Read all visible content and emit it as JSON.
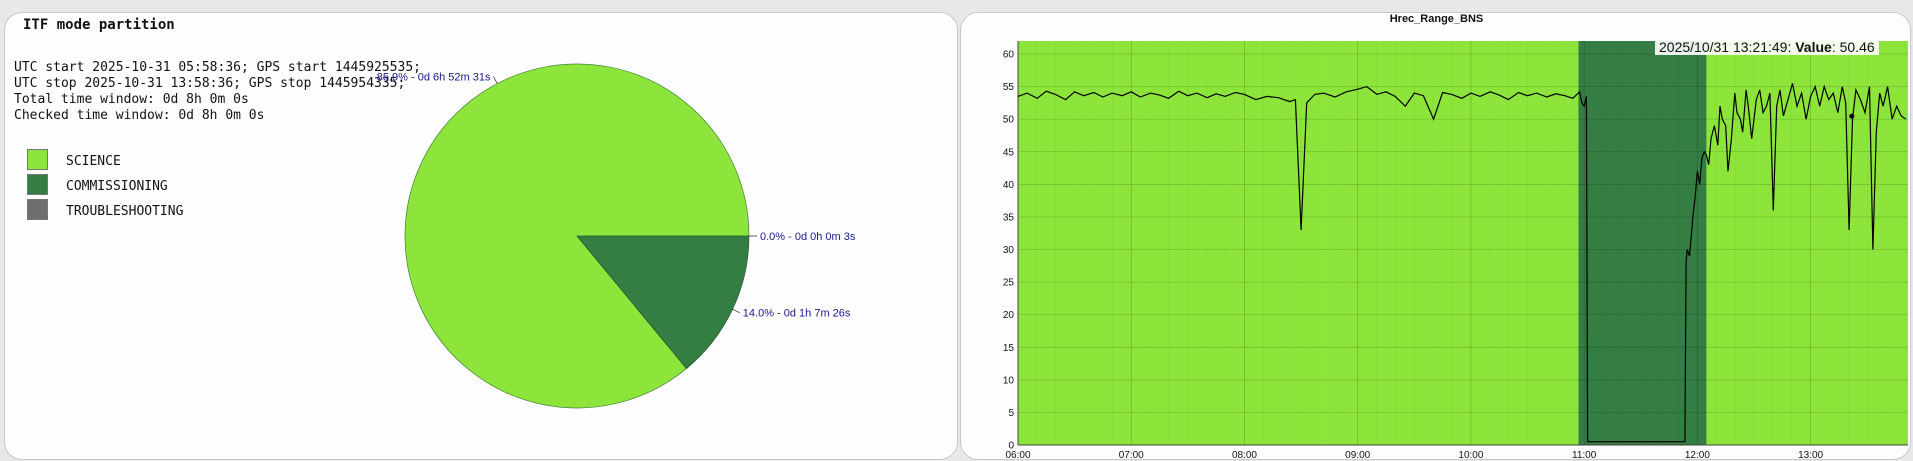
{
  "chart_data": [
    {
      "type": "pie",
      "title": "ITF mode partition",
      "info": [
        "UTC start 2025-10-31 05:58:36; GPS start 1445925535;",
        "UTC stop 2025-10-31 13:58:36; GPS stop 1445954335;",
        "Total time window: 0d 8h 0m 0s",
        "Checked time window: 0d 8h 0m 0s"
      ],
      "legend": [
        {
          "name": "SCIENCE",
          "color": "#8de53c"
        },
        {
          "name": "COMMISSIONING",
          "color": "#347d43"
        },
        {
          "name": "TROUBLESHOOTING",
          "color": "#6e6e6e"
        }
      ],
      "slices": [
        {
          "name": "SCIENCE",
          "value": 85.9,
          "label": "85.9% - 0d 6h 52m 31s",
          "color": "#8de53c"
        },
        {
          "name": "COMMISSIONING",
          "value": 14.0,
          "label": "14.0% - 0d 1h 7m 26s",
          "color": "#347d43"
        },
        {
          "name": "TROUBLESHOOTING",
          "value": 0.0,
          "label": "0.0% - 0d 0h 0m 3s",
          "color": "#6e6e6e"
        }
      ]
    },
    {
      "type": "line",
      "title": "Hrec_Range_BNS",
      "xlabel": "",
      "ylabel": "",
      "ylim": [
        0,
        62
      ],
      "y_ticks": [
        0,
        5,
        10,
        15,
        20,
        25,
        30,
        35,
        40,
        45,
        50,
        55,
        60
      ],
      "x_tick_labels": [
        "06:00",
        "07:00",
        "08:00",
        "09:00",
        "10:00",
        "11:00",
        "12:00",
        "13:00"
      ],
      "x_ticks_hours": [
        6,
        7,
        8,
        9,
        10,
        11,
        12,
        13
      ],
      "xlim_hours": [
        6.0,
        13.86
      ],
      "grid": true,
      "background_bands": [
        {
          "mode": "SCIENCE",
          "start_hour": 6.0,
          "end_hour": 10.95,
          "color": "#8de53c"
        },
        {
          "mode": "COMMISSIONING",
          "start_hour": 10.95,
          "end_hour": 12.08,
          "color": "#347d43"
        },
        {
          "mode": "SCIENCE",
          "start_hour": 12.08,
          "end_hour": 13.86,
          "color": "#8de53c"
        }
      ],
      "series": [
        {
          "color": "#000000",
          "points": [
            [
              6.0,
              53.5
            ],
            [
              6.08,
              54.0
            ],
            [
              6.17,
              53.2
            ],
            [
              6.25,
              54.3
            ],
            [
              6.33,
              53.8
            ],
            [
              6.42,
              53.0
            ],
            [
              6.5,
              54.2
            ],
            [
              6.58,
              53.6
            ],
            [
              6.67,
              54.1
            ],
            [
              6.75,
              53.4
            ],
            [
              6.83,
              54.0
            ],
            [
              6.92,
              53.6
            ],
            [
              7.0,
              54.2
            ],
            [
              7.08,
              53.4
            ],
            [
              7.17,
              54.0
            ],
            [
              7.25,
              53.7
            ],
            [
              7.33,
              53.2
            ],
            [
              7.42,
              54.3
            ],
            [
              7.5,
              53.6
            ],
            [
              7.58,
              54.0
            ],
            [
              7.67,
              53.3
            ],
            [
              7.75,
              53.9
            ],
            [
              7.83,
              53.5
            ],
            [
              7.92,
              54.1
            ],
            [
              8.0,
              53.8
            ],
            [
              8.1,
              53.0
            ],
            [
              8.2,
              53.5
            ],
            [
              8.3,
              53.3
            ],
            [
              8.4,
              52.7
            ],
            [
              8.45,
              53.0
            ],
            [
              8.5,
              33.0
            ],
            [
              8.55,
              52.5
            ],
            [
              8.62,
              53.8
            ],
            [
              8.7,
              54.0
            ],
            [
              8.8,
              53.4
            ],
            [
              8.9,
              54.2
            ],
            [
              9.0,
              54.6
            ],
            [
              9.08,
              55.0
            ],
            [
              9.17,
              53.8
            ],
            [
              9.25,
              54.2
            ],
            [
              9.33,
              53.5
            ],
            [
              9.42,
              52.0
            ],
            [
              9.5,
              54.0
            ],
            [
              9.58,
              53.6
            ],
            [
              9.67,
              50.0
            ],
            [
              9.75,
              54.1
            ],
            [
              9.83,
              53.8
            ],
            [
              9.92,
              53.2
            ],
            [
              10.0,
              54.0
            ],
            [
              10.08,
              53.5
            ],
            [
              10.17,
              54.2
            ],
            [
              10.25,
              53.7
            ],
            [
              10.33,
              53.0
            ],
            [
              10.42,
              54.1
            ],
            [
              10.5,
              53.6
            ],
            [
              10.58,
              54.0
            ],
            [
              10.67,
              53.4
            ],
            [
              10.75,
              53.9
            ],
            [
              10.83,
              53.6
            ],
            [
              10.9,
              53.2
            ],
            [
              10.96,
              54.2
            ],
            [
              10.98,
              52.5
            ],
            [
              11.0,
              52.0
            ],
            [
              11.02,
              53.5
            ],
            [
              11.03,
              0.5
            ],
            [
              11.89,
              0.5
            ],
            [
              11.9,
              28.0
            ],
            [
              11.91,
              30.0
            ],
            [
              11.93,
              29.0
            ],
            [
              11.96,
              35.0
            ],
            [
              11.98,
              38.0
            ],
            [
              12.0,
              42.0
            ],
            [
              12.02,
              40.0
            ],
            [
              12.04,
              44.0
            ],
            [
              12.06,
              45.0
            ],
            [
              12.08,
              44.5
            ],
            [
              12.1,
              43.0
            ],
            [
              12.12,
              47.0
            ],
            [
              12.15,
              49.0
            ],
            [
              12.18,
              46.0
            ],
            [
              12.2,
              52.0
            ],
            [
              12.22,
              50.0
            ],
            [
              12.25,
              49.0
            ],
            [
              12.27,
              42.0
            ],
            [
              12.3,
              47.0
            ],
            [
              12.33,
              54.0
            ],
            [
              12.35,
              51.0
            ],
            [
              12.38,
              50.0
            ],
            [
              12.4,
              48.0
            ],
            [
              12.43,
              54.5
            ],
            [
              12.45,
              52.0
            ],
            [
              12.48,
              47.0
            ],
            [
              12.52,
              53.0
            ],
            [
              12.55,
              54.5
            ],
            [
              12.58,
              51.0
            ],
            [
              12.61,
              52.0
            ],
            [
              12.64,
              54.0
            ],
            [
              12.67,
              36.0
            ],
            [
              12.7,
              52.0
            ],
            [
              12.73,
              54.5
            ],
            [
              12.76,
              50.5
            ],
            [
              12.8,
              53.0
            ],
            [
              12.84,
              55.5
            ],
            [
              12.88,
              52.0
            ],
            [
              12.92,
              54.0
            ],
            [
              12.96,
              50.0
            ],
            [
              13.0,
              53.5
            ],
            [
              13.04,
              55.0
            ],
            [
              13.08,
              52.0
            ],
            [
              13.12,
              55.0
            ],
            [
              13.16,
              53.0
            ],
            [
              13.2,
              54.0
            ],
            [
              13.24,
              51.0
            ],
            [
              13.28,
              55.0
            ],
            [
              13.31,
              52.5
            ],
            [
              13.34,
              33.0
            ],
            [
              13.37,
              50.0
            ],
            [
              13.4,
              54.5
            ],
            [
              13.44,
              53.0
            ],
            [
              13.48,
              51.0
            ],
            [
              13.52,
              55.0
            ],
            [
              13.55,
              30.0
            ],
            [
              13.58,
              48.0
            ],
            [
              13.61,
              54.0
            ],
            [
              13.64,
              52.0
            ],
            [
              13.68,
              55.0
            ],
            [
              13.72,
              50.0
            ],
            [
              13.76,
              52.0
            ],
            [
              13.8,
              50.5
            ],
            [
              13.84,
              50.0
            ]
          ]
        }
      ],
      "tooltip": {
        "time": "2025/10/31 13:21:49:",
        "label": "Value",
        "value": "50.46"
      }
    }
  ]
}
